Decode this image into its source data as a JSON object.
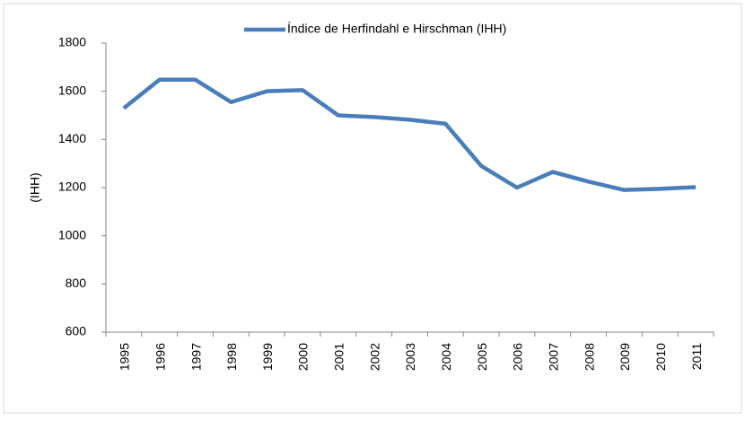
{
  "chart_data": {
    "type": "line",
    "y_label": "(IHH)",
    "categories": [
      "1995",
      "1996",
      "1997",
      "1998",
      "1999",
      "2000",
      "2001",
      "2002",
      "2003",
      "2004",
      "2005",
      "2006",
      "2007",
      "2008",
      "2009",
      "2010",
      "2011"
    ],
    "series": [
      {
        "name": "Índice de Herfindahl e Hirschman (IHH)",
        "color": "#4a7ebb",
        "values": [
          1530,
          1648,
          1648,
          1555,
          1600,
          1605,
          1500,
          1493,
          1482,
          1465,
          1290,
          1200,
          1265,
          1225,
          1190,
          1195,
          1202
        ]
      }
    ],
    "ylim": [
      600,
      1800
    ],
    "yticks": [
      600,
      800,
      1000,
      1200,
      1400,
      1600,
      1800
    ],
    "legend": "top"
  }
}
